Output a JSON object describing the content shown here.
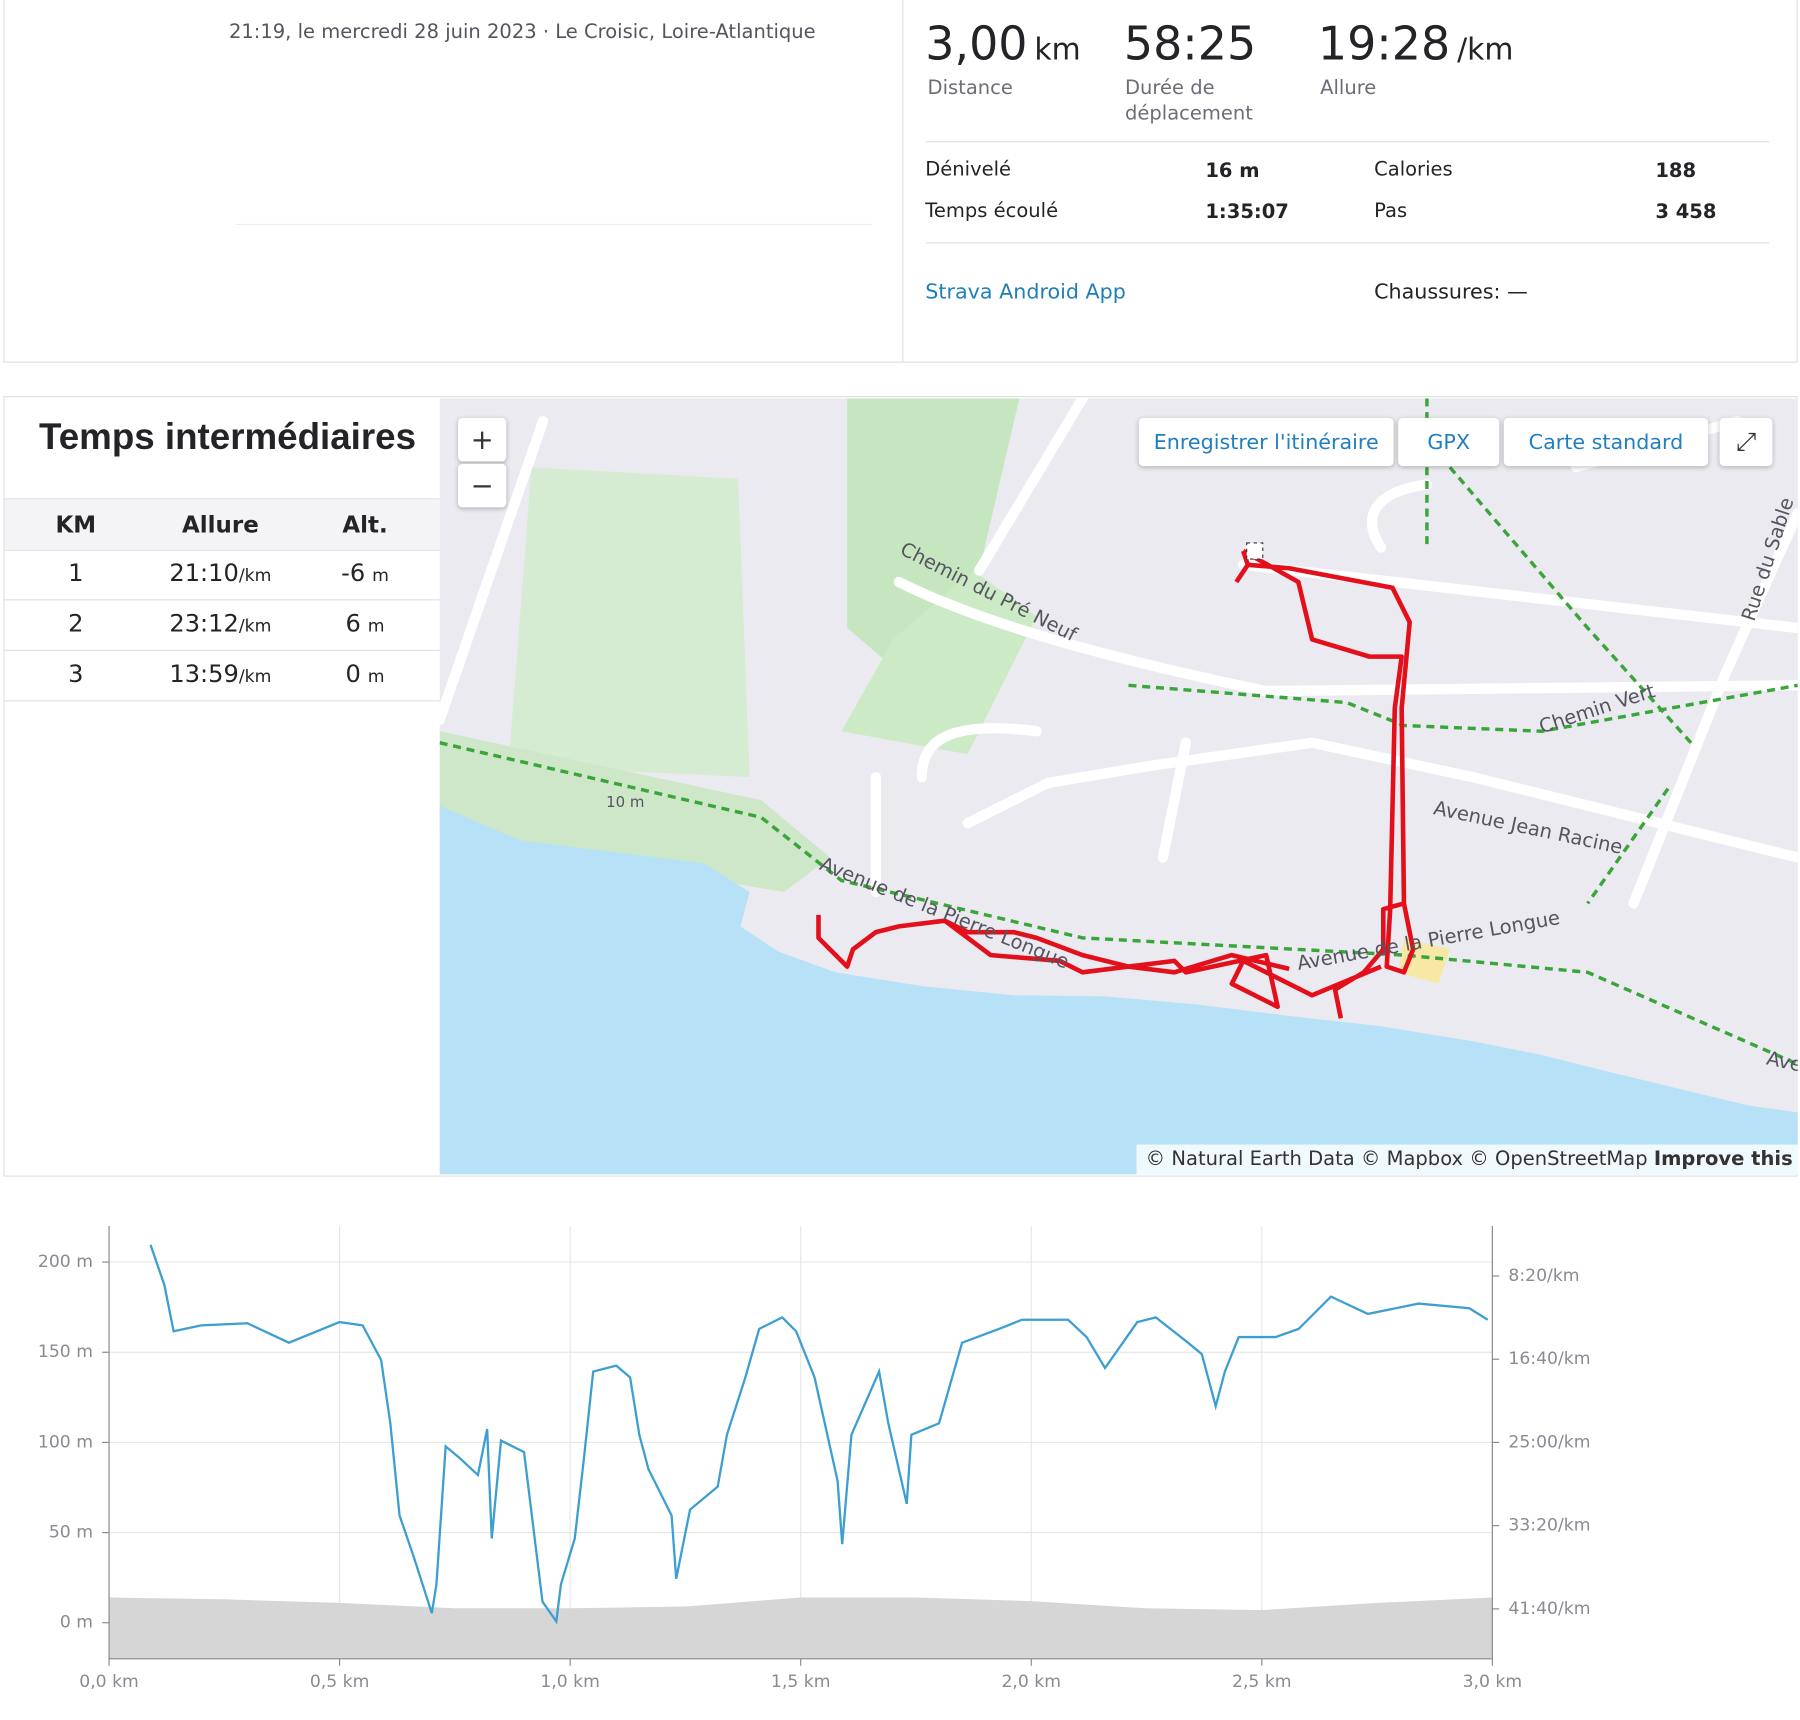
{
  "header": {
    "datetime_location": "21:19, le mercredi 28 juin 2023 · Le Croisic, Loire-Atlantique"
  },
  "stats": {
    "primary": [
      {
        "value": "3,00",
        "unit": "km",
        "label": "Distance"
      },
      {
        "value": "58:25",
        "label": "Durée de déplacement"
      },
      {
        "value": "19:28",
        "unit": "/km",
        "label": "Allure"
      }
    ],
    "secondary": [
      {
        "label": "Dénivelé",
        "value": "16 m"
      },
      {
        "label": "Calories",
        "value": "188"
      },
      {
        "label": "Temps écoulé",
        "value": "1:35:07"
      },
      {
        "label": "Pas",
        "value": "3 458"
      }
    ],
    "device": "Strava Android App",
    "shoes": "Chaussures: —"
  },
  "splits": {
    "title": "Temps intermédiaires",
    "columns": [
      "KM",
      "Allure",
      "Alt."
    ],
    "rows": [
      {
        "km": "1",
        "pace": "21:10",
        "pace_unit": "/km",
        "alt": "-6",
        "alt_unit": "m"
      },
      {
        "km": "2",
        "pace": "23:12",
        "pace_unit": "/km",
        "alt": "6",
        "alt_unit": "m"
      },
      {
        "km": "3",
        "pace": "13:59",
        "pace_unit": "/km",
        "alt": "0",
        "alt_unit": "m"
      }
    ]
  },
  "map": {
    "zoom_in": "+",
    "zoom_out": "−",
    "save_route": "Enregistrer l'itinéraire",
    "gpx": "GPX",
    "style": "Carte standard",
    "streets": [
      "Chemin du Pré Neuf",
      "Chemin Vert",
      "Avenue Jean Racine",
      "Avenue de la Pierre Longue",
      "Avenue de la Pierre Longue",
      "Rue du Sable",
      "Ave",
      "10 m"
    ],
    "attribution": "© Natural Earth Data © Mapbox © OpenStreetMap",
    "improve": "Improve this map"
  },
  "chart_data": {
    "type": "line",
    "xlim": [
      0,
      3
    ],
    "xticks": [
      {
        "value": 0,
        "label": "0,0 km"
      },
      {
        "value": 0.5,
        "label": "0,5 km"
      },
      {
        "value": 1,
        "label": "1,0 km"
      },
      {
        "value": 1.5,
        "label": "1,5 km"
      },
      {
        "value": 2,
        "label": "2,0 km"
      },
      {
        "value": 2.5,
        "label": "2,5 km"
      },
      {
        "value": 3,
        "label": "3,0 km"
      }
    ],
    "ylim": [
      -20,
      220
    ],
    "yticks": [
      {
        "value": 0,
        "label": "0 m"
      },
      {
        "value": 50,
        "label": "50 m"
      },
      {
        "value": 100,
        "label": "100 m"
      },
      {
        "value": 150,
        "label": "150 m"
      },
      {
        "value": 200,
        "label": "200 m"
      }
    ],
    "y2lim": [
      2800,
      200
    ],
    "y2ticks": [
      {
        "value": 500,
        "label": "8:20/km"
      },
      {
        "value": 1000,
        "label": "16:40/km"
      },
      {
        "value": 1500,
        "label": "25:00/km"
      },
      {
        "value": 2000,
        "label": "33:20/km"
      },
      {
        "value": 2500,
        "label": "41:40/km"
      }
    ],
    "grid": true,
    "series": [
      {
        "color": "#3d9fd1",
        "axis": "y2",
        "x": [
          0.09,
          0.12,
          0.14,
          0.2,
          0.3,
          0.39,
          0.5,
          0.55,
          0.59,
          0.61,
          0.63,
          0.66,
          0.7,
          0.71,
          0.73,
          0.76,
          0.8,
          0.82,
          0.83,
          0.85,
          0.9,
          0.92,
          0.94,
          0.97,
          0.98,
          1.01,
          1.03,
          1.05,
          1.1,
          1.13,
          1.15,
          1.17,
          1.22,
          1.23,
          1.26,
          1.32,
          1.34,
          1.38,
          1.41,
          1.46,
          1.49,
          1.53,
          1.58,
          1.59,
          1.61,
          1.67,
          1.69,
          1.73,
          1.74,
          1.8,
          1.85,
          1.93,
          1.98,
          2.08,
          2.12,
          2.16,
          2.23,
          2.27,
          2.34,
          2.37,
          2.4,
          2.42,
          2.45,
          2.53,
          2.58,
          2.65,
          2.73,
          2.84,
          2.95,
          2.99
        ],
        "values": [
          313,
          555,
          832,
          797,
          784,
          901,
          777,
          797,
          1005,
          1385,
          1939,
          2181,
          2526,
          2353,
          1524,
          1593,
          1696,
          1420,
          2077,
          1489,
          1558,
          2008,
          2457,
          2575,
          2353,
          2077,
          1593,
          1074,
          1039,
          1109,
          1454,
          1662,
          1939,
          2319,
          1904,
          1766,
          1454,
          1109,
          818,
          749,
          832,
          1109,
          1731,
          2111,
          1454,
          1074,
          1385,
          1869,
          1454,
          1385,
          901,
          818,
          763,
          763,
          867,
          1053,
          777,
          749,
          901,
          970,
          1282,
          1074,
          867,
          867,
          818,
          624,
          728,
          666,
          694,
          763
        ]
      },
      {
        "type": "area",
        "color": "#d6d6d6",
        "x": [
          0,
          0.25,
          0.5,
          0.75,
          1,
          1.25,
          1.5,
          1.75,
          2,
          2.25,
          2.5,
          2.75,
          3
        ],
        "values": [
          14,
          13,
          11,
          8,
          8,
          9,
          14,
          14,
          12,
          8,
          7,
          11,
          14
        ]
      }
    ]
  }
}
